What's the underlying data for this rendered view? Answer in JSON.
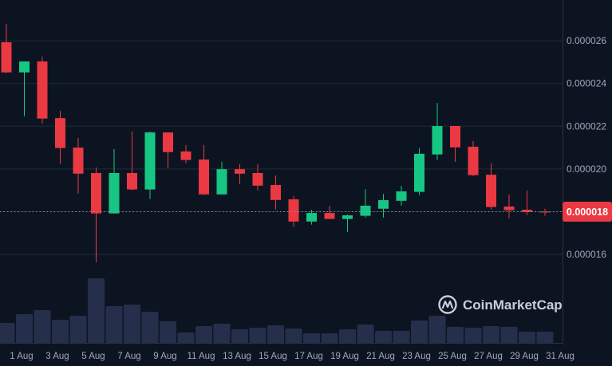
{
  "chart_data": {
    "type": "candlestick",
    "title": "",
    "xlabel": "",
    "ylabel": "",
    "ylim": [
      1.5e-05,
      2.8e-05
    ],
    "grid": true,
    "y_ticks": [
      "0.000016",
      "0.000020",
      "0.000022",
      "0.000024",
      "0.000026"
    ],
    "x_ticks": [
      "1 Aug",
      "3 Aug",
      "5 Aug",
      "7 Aug",
      "9 Aug",
      "11 Aug",
      "13 Aug",
      "15 Aug",
      "17 Aug",
      "19 Aug",
      "21 Aug",
      "23 Aug",
      "25 Aug",
      "27 Aug",
      "29 Aug",
      "31 Aug"
    ],
    "last_price_label": "0.000018",
    "last_price": 1.8e-05,
    "colors": {
      "up": "#16c784",
      "down": "#ea3943",
      "background": "#0d1421",
      "volume": "#252f4b",
      "grid": "#222a37"
    },
    "candles": [
      {
        "date": "1 Aug",
        "o": 2.593e-05,
        "h": 2.679e-05,
        "l": 2.448e-05,
        "c": 2.452e-05
      },
      {
        "date": "2 Aug",
        "o": 2.452e-05,
        "h": 2.503e-05,
        "l": 2.247e-05,
        "c": 2.503e-05
      },
      {
        "date": "3 Aug",
        "o": 2.503e-05,
        "h": 2.526e-05,
        "l": 2.213e-05,
        "c": 2.236e-05
      },
      {
        "date": "4 Aug",
        "o": 2.238e-05,
        "h": 2.272e-05,
        "l": 2.023e-05,
        "c": 2.098e-05
      },
      {
        "date": "5 Aug",
        "o": 2.1e-05,
        "h": 2.145e-05,
        "l": 1.885e-05,
        "c": 1.978e-05
      },
      {
        "date": "6 Aug",
        "o": 1.981e-05,
        "h": 2.007e-05,
        "l": 1.564e-05,
        "c": 1.792e-05
      },
      {
        "date": "7 Aug",
        "o": 1.792e-05,
        "h": 2.093e-05,
        "l": 1.792e-05,
        "c": 1.981e-05
      },
      {
        "date": "8 Aug",
        "o": 1.981e-05,
        "h": 2.175e-05,
        "l": 1.9e-05,
        "c": 1.904e-05
      },
      {
        "date": "9 Aug",
        "o": 1.904e-05,
        "h": 2.175e-05,
        "l": 1.859e-05,
        "c": 2.171e-05
      },
      {
        "date": "10 Aug",
        "o": 2.171e-05,
        "h": 2.171e-05,
        "l": 2.003e-05,
        "c": 2.079e-05
      },
      {
        "date": "11 Aug",
        "o": 2.082e-05,
        "h": 2.112e-05,
        "l": 2.027e-05,
        "c": 2.042e-05
      },
      {
        "date": "12 Aug",
        "o": 2.044e-05,
        "h": 2.112e-05,
        "l": 1.878e-05,
        "c": 1.881e-05
      },
      {
        "date": "13 Aug",
        "o": 1.881e-05,
        "h": 2.033e-05,
        "l": 1.881e-05,
        "c": 1.999e-05
      },
      {
        "date": "14 Aug",
        "o": 1.999e-05,
        "h": 2.022e-05,
        "l": 1.93e-05,
        "c": 1.978e-05
      },
      {
        "date": "15 Aug",
        "o": 1.981e-05,
        "h": 2.022e-05,
        "l": 1.9e-05,
        "c": 1.922e-05
      },
      {
        "date": "16 Aug",
        "o": 1.925e-05,
        "h": 1.97e-05,
        "l": 1.81e-05,
        "c": 1.855e-05
      },
      {
        "date": "17 Aug",
        "o": 1.858e-05,
        "h": 1.873e-05,
        "l": 1.728e-05,
        "c": 1.754e-05
      },
      {
        "date": "18 Aug",
        "o": 1.754e-05,
        "h": 1.809e-05,
        "l": 1.74e-05,
        "c": 1.794e-05
      },
      {
        "date": "19 Aug",
        "o": 1.794e-05,
        "h": 1.828e-05,
        "l": 1.766e-05,
        "c": 1.766e-05
      },
      {
        "date": "20 Aug",
        "o": 1.766e-05,
        "h": 1.787e-05,
        "l": 1.706e-05,
        "c": 1.783e-05
      },
      {
        "date": "21 Aug",
        "o": 1.781e-05,
        "h": 1.906e-05,
        "l": 1.773e-05,
        "c": 1.828e-05
      },
      {
        "date": "22 Aug",
        "o": 1.814e-05,
        "h": 1.883e-05,
        "l": 1.773e-05,
        "c": 1.854e-05
      },
      {
        "date": "23 Aug",
        "o": 1.851e-05,
        "h": 1.921e-05,
        "l": 1.829e-05,
        "c": 1.895e-05
      },
      {
        "date": "24 Aug",
        "o": 1.893e-05,
        "h": 2.097e-05,
        "l": 1.878e-05,
        "c": 2.071e-05
      },
      {
        "date": "25 Aug",
        "o": 2.068e-05,
        "h": 2.309e-05,
        "l": 2.042e-05,
        "c": 2.201e-05
      },
      {
        "date": "26 Aug",
        "o": 2.201e-05,
        "h": 2.201e-05,
        "l": 2.034e-05,
        "c": 2.101e-05
      },
      {
        "date": "27 Aug",
        "o": 2.104e-05,
        "h": 2.13e-05,
        "l": 1.967e-05,
        "c": 1.971e-05
      },
      {
        "date": "28 Aug",
        "o": 1.973e-05,
        "h": 2.026e-05,
        "l": 1.81e-05,
        "c": 1.822e-05
      },
      {
        "date": "29 Aug",
        "o": 1.824e-05,
        "h": 1.88e-05,
        "l": 1.769e-05,
        "c": 1.807e-05
      },
      {
        "date": "30 Aug",
        "o": 1.809e-05,
        "h": 1.899e-05,
        "l": 1.784e-05,
        "c": 1.799e-05
      },
      {
        "date": "31 Aug",
        "o": 1.8e-05,
        "h": 1.814e-05,
        "l": 1.781e-05,
        "c": 1.799e-05
      }
    ],
    "volume_relative": [
      25,
      36,
      41,
      29,
      34,
      81,
      46,
      48,
      39,
      27,
      13,
      21,
      24,
      17,
      19,
      22,
      18,
      12,
      12,
      17,
      23,
      15,
      15,
      28,
      34,
      20,
      19,
      21,
      20,
      14,
      14
    ]
  },
  "watermark": {
    "text": "CoinMarketCap"
  }
}
